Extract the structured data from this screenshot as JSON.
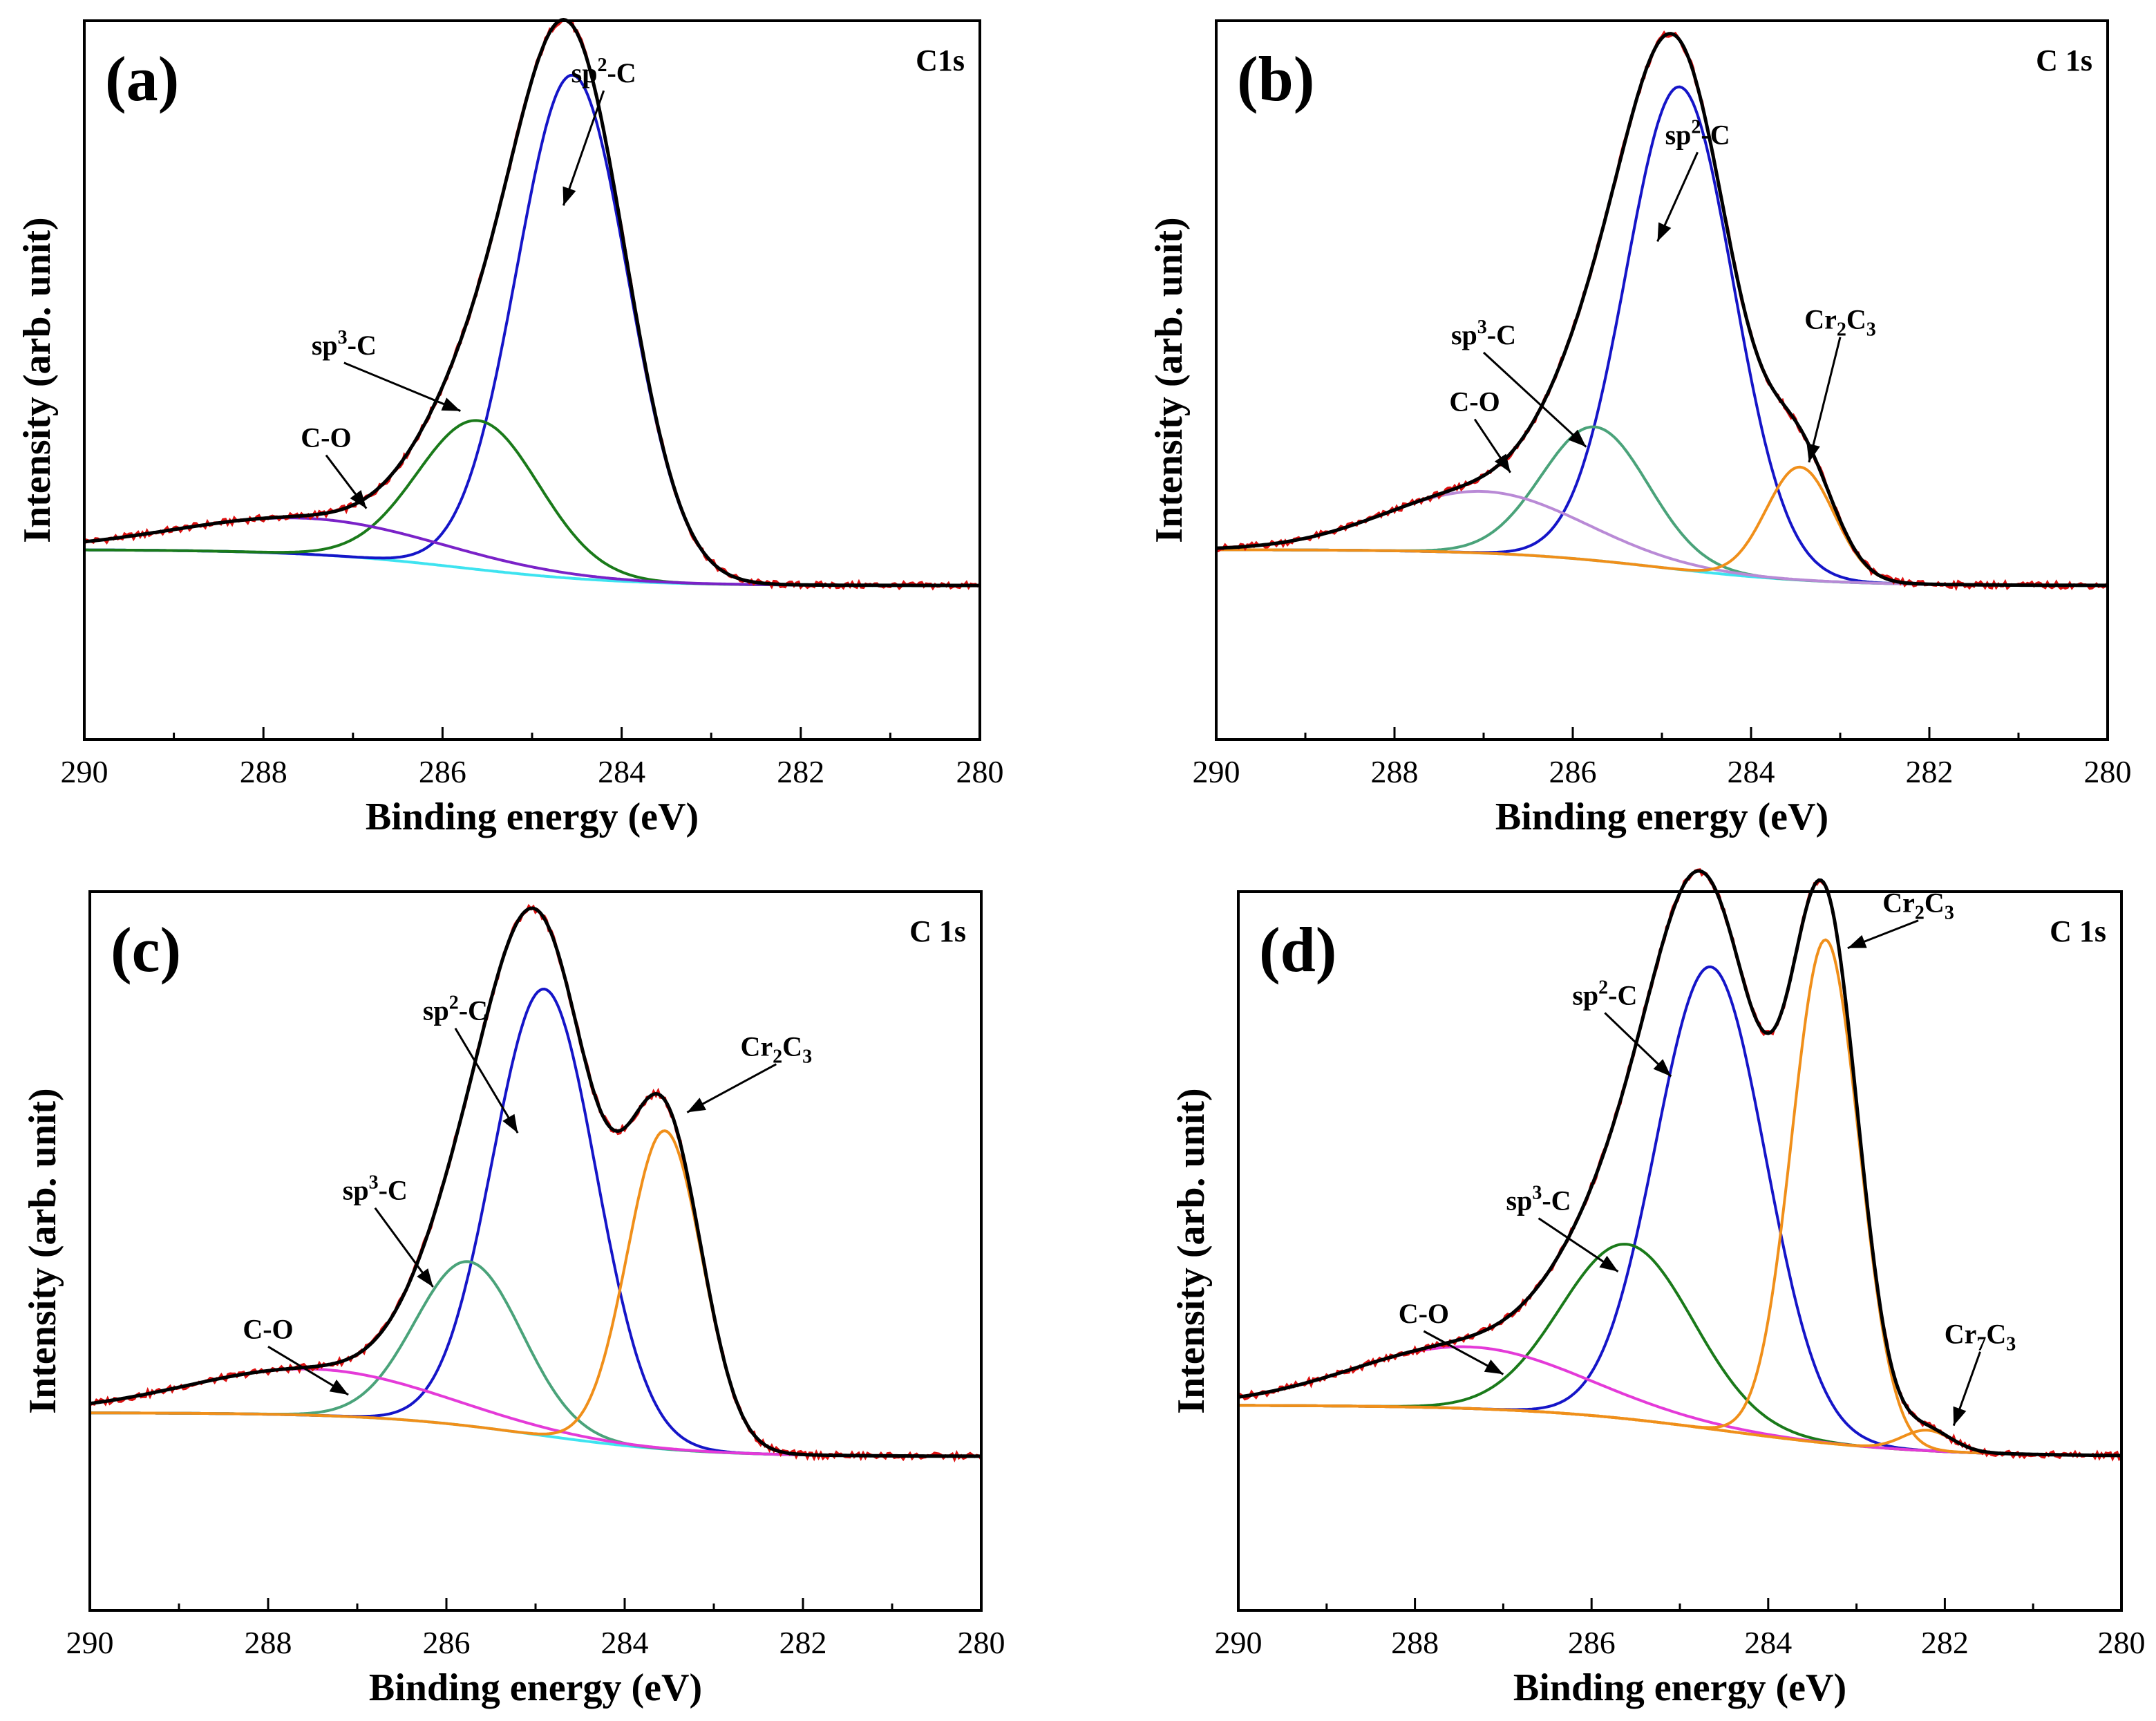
{
  "chart_data": [
    {
      "type": "line",
      "panel_label": "(a)",
      "title": "C1s",
      "xlabel": "Binding energy (eV)",
      "ylabel": "Intensity (arb. unit)",
      "xlim": [
        290,
        280
      ],
      "ylim": [
        -0.3,
        1.1
      ],
      "xticks": [
        "290",
        "288",
        "286",
        "284",
        "282",
        "280"
      ],
      "background": {
        "low": 0.0,
        "high": 0.07,
        "center": 285.8,
        "width": 0.9
      },
      "components": [
        {
          "name": "sp2-C",
          "label": "sp",
          "sup": "2",
          "suffix": "-C",
          "color": "#1515c8",
          "center": 284.55,
          "amplitude": 0.98,
          "sigma": 0.62,
          "label_at": [
            284.2,
            0.98
          ],
          "arrow_to": [
            284.65,
            0.74
          ]
        },
        {
          "name": "sp3-C",
          "label": "sp",
          "sup": "3",
          "suffix": "-C",
          "color": "#1a7a1a",
          "center": 285.6,
          "amplitude": 0.29,
          "sigma": 0.68,
          "label_at": [
            287.1,
            0.45
          ],
          "arrow_to": [
            285.8,
            0.34
          ]
        },
        {
          "name": "C-O",
          "label": "C-O",
          "sup": "",
          "suffix": "",
          "color": "#7a22c8",
          "center": 287.5,
          "amplitude": 0.07,
          "sigma": 1.45,
          "label_at": [
            287.3,
            0.27
          ],
          "arrow_to": [
            286.85,
            0.15
          ]
        }
      ],
      "measured": {
        "name": "Raw data",
        "color": "#dd1111"
      },
      "fitted": {
        "name": "Fitted envelope",
        "color": "#000000"
      },
      "baseline": {
        "name": "Background",
        "color": "#3ee3f0"
      }
    },
    {
      "type": "line",
      "panel_label": "(b)",
      "title": "C 1s",
      "xlabel": "Binding energy (eV)",
      "ylabel": "Intensity (arb. unit)",
      "xlim": [
        290,
        280
      ],
      "ylim": [
        -0.3,
        1.1
      ],
      "xticks": [
        "290",
        "288",
        "286",
        "284",
        "282",
        "280"
      ],
      "background": {
        "low": 0.0,
        "high": 0.07,
        "center": 285.0,
        "width": 0.9
      },
      "components": [
        {
          "name": "sp2-C",
          "label": "sp",
          "sup": "2",
          "suffix": "-C",
          "color": "#1515c8",
          "center": 284.8,
          "amplitude": 0.94,
          "sigma": 0.6,
          "label_at": [
            284.6,
            0.86
          ],
          "arrow_to": [
            285.05,
            0.67
          ]
        },
        {
          "name": "sp3-C",
          "label": "sp",
          "sup": "3",
          "suffix": "-C",
          "color": "#4aa37a",
          "center": 285.75,
          "amplitude": 0.26,
          "sigma": 0.6,
          "label_at": [
            287.0,
            0.47
          ],
          "arrow_to": [
            285.85,
            0.27
          ]
        },
        {
          "name": "C-O",
          "label": "C-O",
          "sup": "",
          "suffix": "",
          "color": "#b98ad6",
          "center": 287.0,
          "amplitude": 0.12,
          "sigma": 1.1,
          "label_at": [
            287.1,
            0.34
          ],
          "arrow_to": [
            286.7,
            0.22
          ]
        },
        {
          "name": "Cr2C3",
          "label": "Cr",
          "sub": "2",
          "suffix": "C",
          "sub2": "3",
          "color": "#f08f1a",
          "center": 283.45,
          "amplitude": 0.22,
          "sigma": 0.38,
          "label_at": [
            283.0,
            0.5
          ],
          "arrow_to": [
            283.35,
            0.24
          ]
        }
      ],
      "measured": {
        "name": "Raw data",
        "color": "#dd1111"
      },
      "fitted": {
        "name": "Fitted envelope",
        "color": "#000000"
      },
      "baseline": {
        "name": "Background",
        "color": "#3ee3f0"
      }
    },
    {
      "type": "line",
      "panel_label": "(c)",
      "title": "C 1s",
      "xlabel": "Binding energy (eV)",
      "ylabel": "Intensity (arb. unit)",
      "xlim": [
        290,
        280
      ],
      "ylim": [
        -0.3,
        1.1
      ],
      "xticks": [
        "290",
        "288",
        "286",
        "284",
        "282",
        "280"
      ],
      "background": {
        "low": 0.0,
        "high": 0.085,
        "center": 285.0,
        "width": 0.9
      },
      "components": [
        {
          "name": "sp2-C",
          "label": "sp",
          "sup": "2",
          "suffix": "-C",
          "color": "#1515c8",
          "center": 284.9,
          "amplitude": 0.87,
          "sigma": 0.58,
          "label_at": [
            285.9,
            0.85
          ],
          "arrow_to": [
            285.2,
            0.63
          ]
        },
        {
          "name": "sp3-C",
          "label": "sp",
          "sup": "3",
          "suffix": "-C",
          "color": "#4aa37a",
          "center": 285.75,
          "amplitude": 0.32,
          "sigma": 0.6,
          "label_at": [
            286.8,
            0.5
          ],
          "arrow_to": [
            286.15,
            0.33
          ]
        },
        {
          "name": "C-O",
          "label": "C-O",
          "sup": "",
          "suffix": "",
          "color": "#e43ad8",
          "center": 287.5,
          "amplitude": 0.09,
          "sigma": 1.4,
          "label_at": [
            288.0,
            0.23
          ],
          "arrow_to": [
            287.1,
            0.12
          ]
        },
        {
          "name": "Cr2C3",
          "label": "Cr",
          "sub": "2",
          "suffix": "C",
          "sub2": "3",
          "color": "#f08f1a",
          "center": 283.55,
          "amplitude": 0.62,
          "sigma": 0.42,
          "label_at": [
            282.3,
            0.78
          ],
          "arrow_to": [
            283.3,
            0.67
          ]
        }
      ],
      "measured": {
        "name": "Raw data",
        "color": "#dd1111"
      },
      "fitted": {
        "name": "Fitted envelope",
        "color": "#000000"
      },
      "baseline": {
        "name": "Background",
        "color": "#3ee3f0"
      }
    },
    {
      "type": "line",
      "panel_label": "(d)",
      "title": "C 1s",
      "xlabel": "Binding energy (eV)",
      "ylabel": "Intensity (arb. unit)",
      "xlim": [
        290,
        280
      ],
      "ylim": [
        -0.3,
        1.1
      ],
      "xticks": [
        "290",
        "288",
        "286",
        "284",
        "282",
        "280"
      ],
      "background": {
        "low": 0.0,
        "high": 0.1,
        "center": 284.5,
        "width": 1.1
      },
      "components": [
        {
          "name": "sp2-C",
          "label": "sp",
          "sup": "2",
          "suffix": "-C",
          "color": "#1515c8",
          "center": 284.65,
          "amplitude": 0.9,
          "sigma": 0.62,
          "label_at": [
            285.85,
            0.88
          ],
          "arrow_to": [
            285.1,
            0.74
          ]
        },
        {
          "name": "sp3-C",
          "label": "sp",
          "sup": "3",
          "suffix": "-C",
          "color": "#1a7a1a",
          "center": 285.6,
          "amplitude": 0.34,
          "sigma": 0.75,
          "label_at": [
            286.6,
            0.48
          ],
          "arrow_to": [
            285.7,
            0.36
          ]
        },
        {
          "name": "C-O",
          "label": "C-O",
          "sup": "",
          "suffix": "",
          "color": "#e43ad8",
          "center": 287.4,
          "amplitude": 0.12,
          "sigma": 1.3,
          "label_at": [
            287.9,
            0.26
          ],
          "arrow_to": [
            287.0,
            0.16
          ]
        },
        {
          "name": "Cr2C3",
          "label": "Cr",
          "sub": "2",
          "suffix": "C",
          "sub2": "3",
          "color": "#f08f1a",
          "center": 283.35,
          "amplitude": 0.98,
          "sigma": 0.38,
          "label_at": [
            282.3,
            1.06
          ],
          "arrow_to": [
            283.1,
            0.99
          ]
        },
        {
          "name": "Cr7C3",
          "label": "Cr",
          "sub": "7",
          "suffix": "C",
          "sub2": "3",
          "color": "#f08f1a",
          "center": 282.2,
          "amplitude": 0.04,
          "sigma": 0.28,
          "label_at": [
            281.6,
            0.22
          ],
          "arrow_to": [
            281.9,
            0.06
          ]
        }
      ],
      "measured": {
        "name": "Raw data",
        "color": "#dd1111"
      },
      "fitted": {
        "name": "Fitted envelope",
        "color": "#000000"
      },
      "baseline": {
        "name": "Background",
        "color": "#b5b24a"
      }
    }
  ]
}
